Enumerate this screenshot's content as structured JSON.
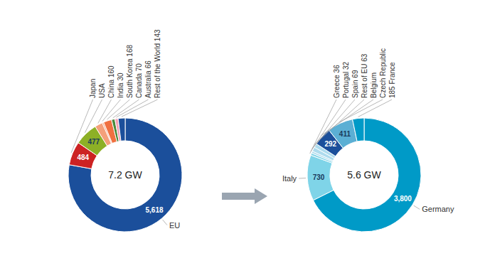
{
  "chart_data": [
    {
      "type": "donut",
      "annotations": [
        "7.2 GW"
      ],
      "categories": [
        "EU",
        "Japan",
        "USA",
        "China 160",
        "India 30",
        "South Korea 168",
        "Canada 70",
        "Australia 66",
        "Rest of the World 143"
      ],
      "values": [
        5618,
        484,
        477,
        160,
        30,
        168,
        70,
        66,
        143
      ],
      "colors": [
        "#1b4f9b",
        "#cc2222",
        "#8db026",
        "#f4a07a",
        "#f4a07a",
        "#f07040",
        "#4a8a3a",
        "#f4a0b4",
        "#1b4f9b"
      ],
      "value_labels": [
        "5,618",
        "484",
        "477",
        null,
        null,
        null,
        null,
        null,
        null
      ]
    },
    {
      "type": "donut",
      "annotations": [
        "5.6 GW"
      ],
      "categories": [
        "Germany",
        "Italy",
        "Greece 36",
        "Portugal 32",
        "Spain 69",
        "Rest of EU 63",
        "Belgium",
        "Czech Republic",
        "185 France"
      ],
      "values": [
        3800,
        730,
        36,
        32,
        69,
        63,
        292,
        411,
        185
      ],
      "colors": [
        "#009ac7",
        "#7fd4e8",
        "#7fd4e8",
        "#aedcee",
        "#aedcee",
        "#aedcee",
        "#1b4f9b",
        "#5bafd4",
        "#009ac7"
      ],
      "value_labels": [
        "3,800",
        "730",
        null,
        null,
        null,
        null,
        "292",
        "411",
        null
      ]
    }
  ]
}
